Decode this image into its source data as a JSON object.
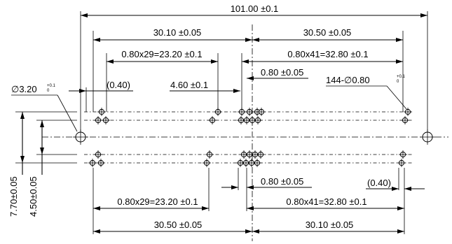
{
  "dimensions": {
    "overall": "101.00 ±0.1",
    "top_left_span": "30.10 ±0.05",
    "top_right_span": "30.50 ±0.05",
    "top_left_pitch": "0.80x29=23.20 ±0.1",
    "top_right_pitch": "0.80x41=32.80 ±0.1",
    "top_gap": "0.80 ±0.05",
    "pin_offset": "4.60 ±0.1",
    "edge_offset_top": "(0.40)",
    "pin_hole_dia": "∅3.20",
    "pin_hole_tol_upper": "+0.1",
    "pin_hole_tol_lower": "0",
    "contact_holes": "144-∅0.80",
    "contact_holes_tol_upper": "+0.1",
    "contact_holes_tol_lower": "0",
    "bottom_gap": "0.80 ±0.05",
    "edge_offset_bottom": "(0.40)",
    "bottom_left_pitch": "0.80x29=23.20 ±0.1",
    "bottom_right_pitch": "0.80x41=32.80 ±0.1",
    "bottom_left_span": "30.50 ±0.05",
    "bottom_right_span": "30.10 ±0.05",
    "vertical_outer": "7.70±0.05",
    "vertical_inner": "4.50±0.05"
  }
}
